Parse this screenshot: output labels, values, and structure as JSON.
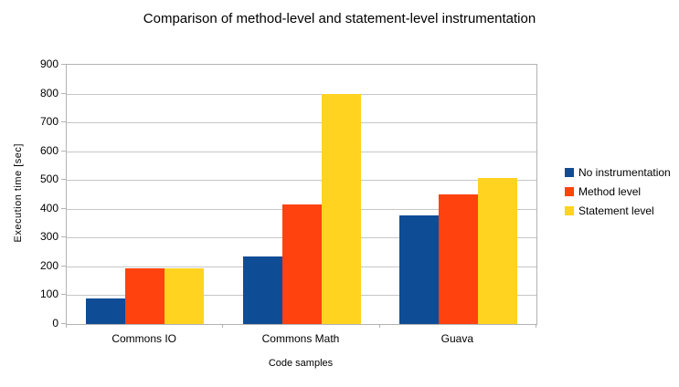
{
  "title": "Comparison of method-level and statement-level instrumentation",
  "chart_data": {
    "type": "bar",
    "title": "Comparison of method-level and statement-level instrumentation",
    "categories": [
      "Commons IO",
      "Commons Math",
      "Guava"
    ],
    "series": [
      {
        "name": "No instrumentation",
        "color": "#0E4C96",
        "values": [
          87,
          232,
          376
        ]
      },
      {
        "name": "Method level",
        "color": "#FF420E",
        "values": [
          192,
          413,
          450
        ]
      },
      {
        "name": "Statement level",
        "color": "#FFD320",
        "values": [
          192,
          800,
          505
        ]
      }
    ],
    "xlabel": "Code samples",
    "ylabel": "Execution time [sec]",
    "ylim": [
      0,
      900
    ],
    "y_ticks": [
      0,
      100,
      200,
      300,
      400,
      500,
      600,
      700,
      800,
      900
    ],
    "grid": true,
    "legend_position": "right",
    "colors": {
      "gridline": "#C6C6C6",
      "axis": "#B3B3B3",
      "background": "#FFFFFF",
      "text": "#000000"
    }
  }
}
